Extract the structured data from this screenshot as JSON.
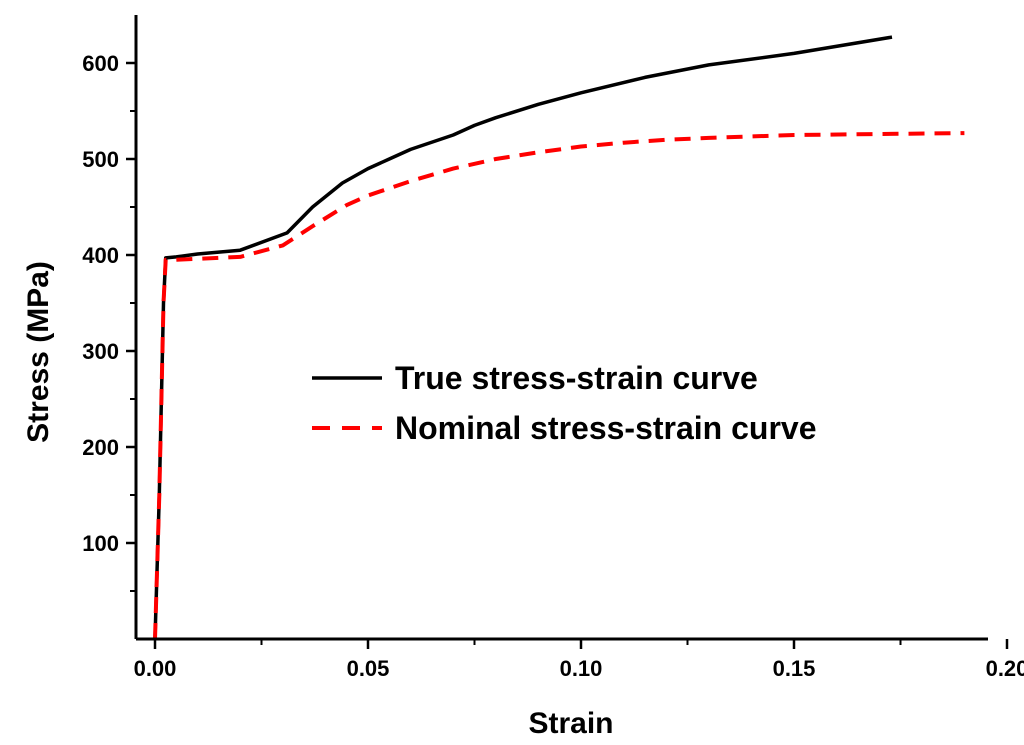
{
  "chart_data": {
    "type": "line",
    "title": "",
    "xlabel": "Strain",
    "ylabel": "Stress (MPa)",
    "xlim": [
      0.0,
      0.2
    ],
    "ylim": [
      0,
      650
    ],
    "xticks": [
      0.0,
      0.05,
      0.1,
      0.15,
      0.2
    ],
    "xtick_labels": [
      "0.00",
      "0.05",
      "0.10",
      "0.15",
      "0.20"
    ],
    "yticks": [
      100,
      200,
      300,
      400,
      500,
      600
    ],
    "ytick_labels": [
      "100",
      "200",
      "300",
      "400",
      "500",
      "600"
    ],
    "grid": false,
    "legend_position": "center",
    "series": [
      {
        "name": "True stress-strain curve",
        "color": "#000000",
        "style": "solid",
        "x": [
          0.0,
          0.001,
          0.002,
          0.0025,
          0.005,
          0.01,
          0.02,
          0.031,
          0.037,
          0.044,
          0.05,
          0.055,
          0.06,
          0.07,
          0.075,
          0.08,
          0.09,
          0.1,
          0.115,
          0.13,
          0.15,
          0.173
        ],
        "y": [
          0,
          150,
          350,
          397,
          398,
          401,
          405,
          423,
          450,
          475,
          490,
          500,
          510,
          525,
          535,
          543,
          557,
          569,
          585,
          598,
          610,
          627
        ]
      },
      {
        "name": "Nominal stress-strain curve",
        "color": "#ff0000",
        "style": "dashed",
        "x": [
          0.0,
          0.001,
          0.002,
          0.0025,
          0.005,
          0.01,
          0.02,
          0.03,
          0.037,
          0.045,
          0.05,
          0.06,
          0.07,
          0.08,
          0.09,
          0.1,
          0.11,
          0.12,
          0.13,
          0.15,
          0.17,
          0.19
        ],
        "y": [
          0,
          150,
          350,
          395,
          395,
          396,
          398,
          410,
          430,
          452,
          462,
          477,
          490,
          500,
          507,
          513,
          517,
          520,
          522,
          525,
          526,
          527
        ]
      }
    ]
  }
}
